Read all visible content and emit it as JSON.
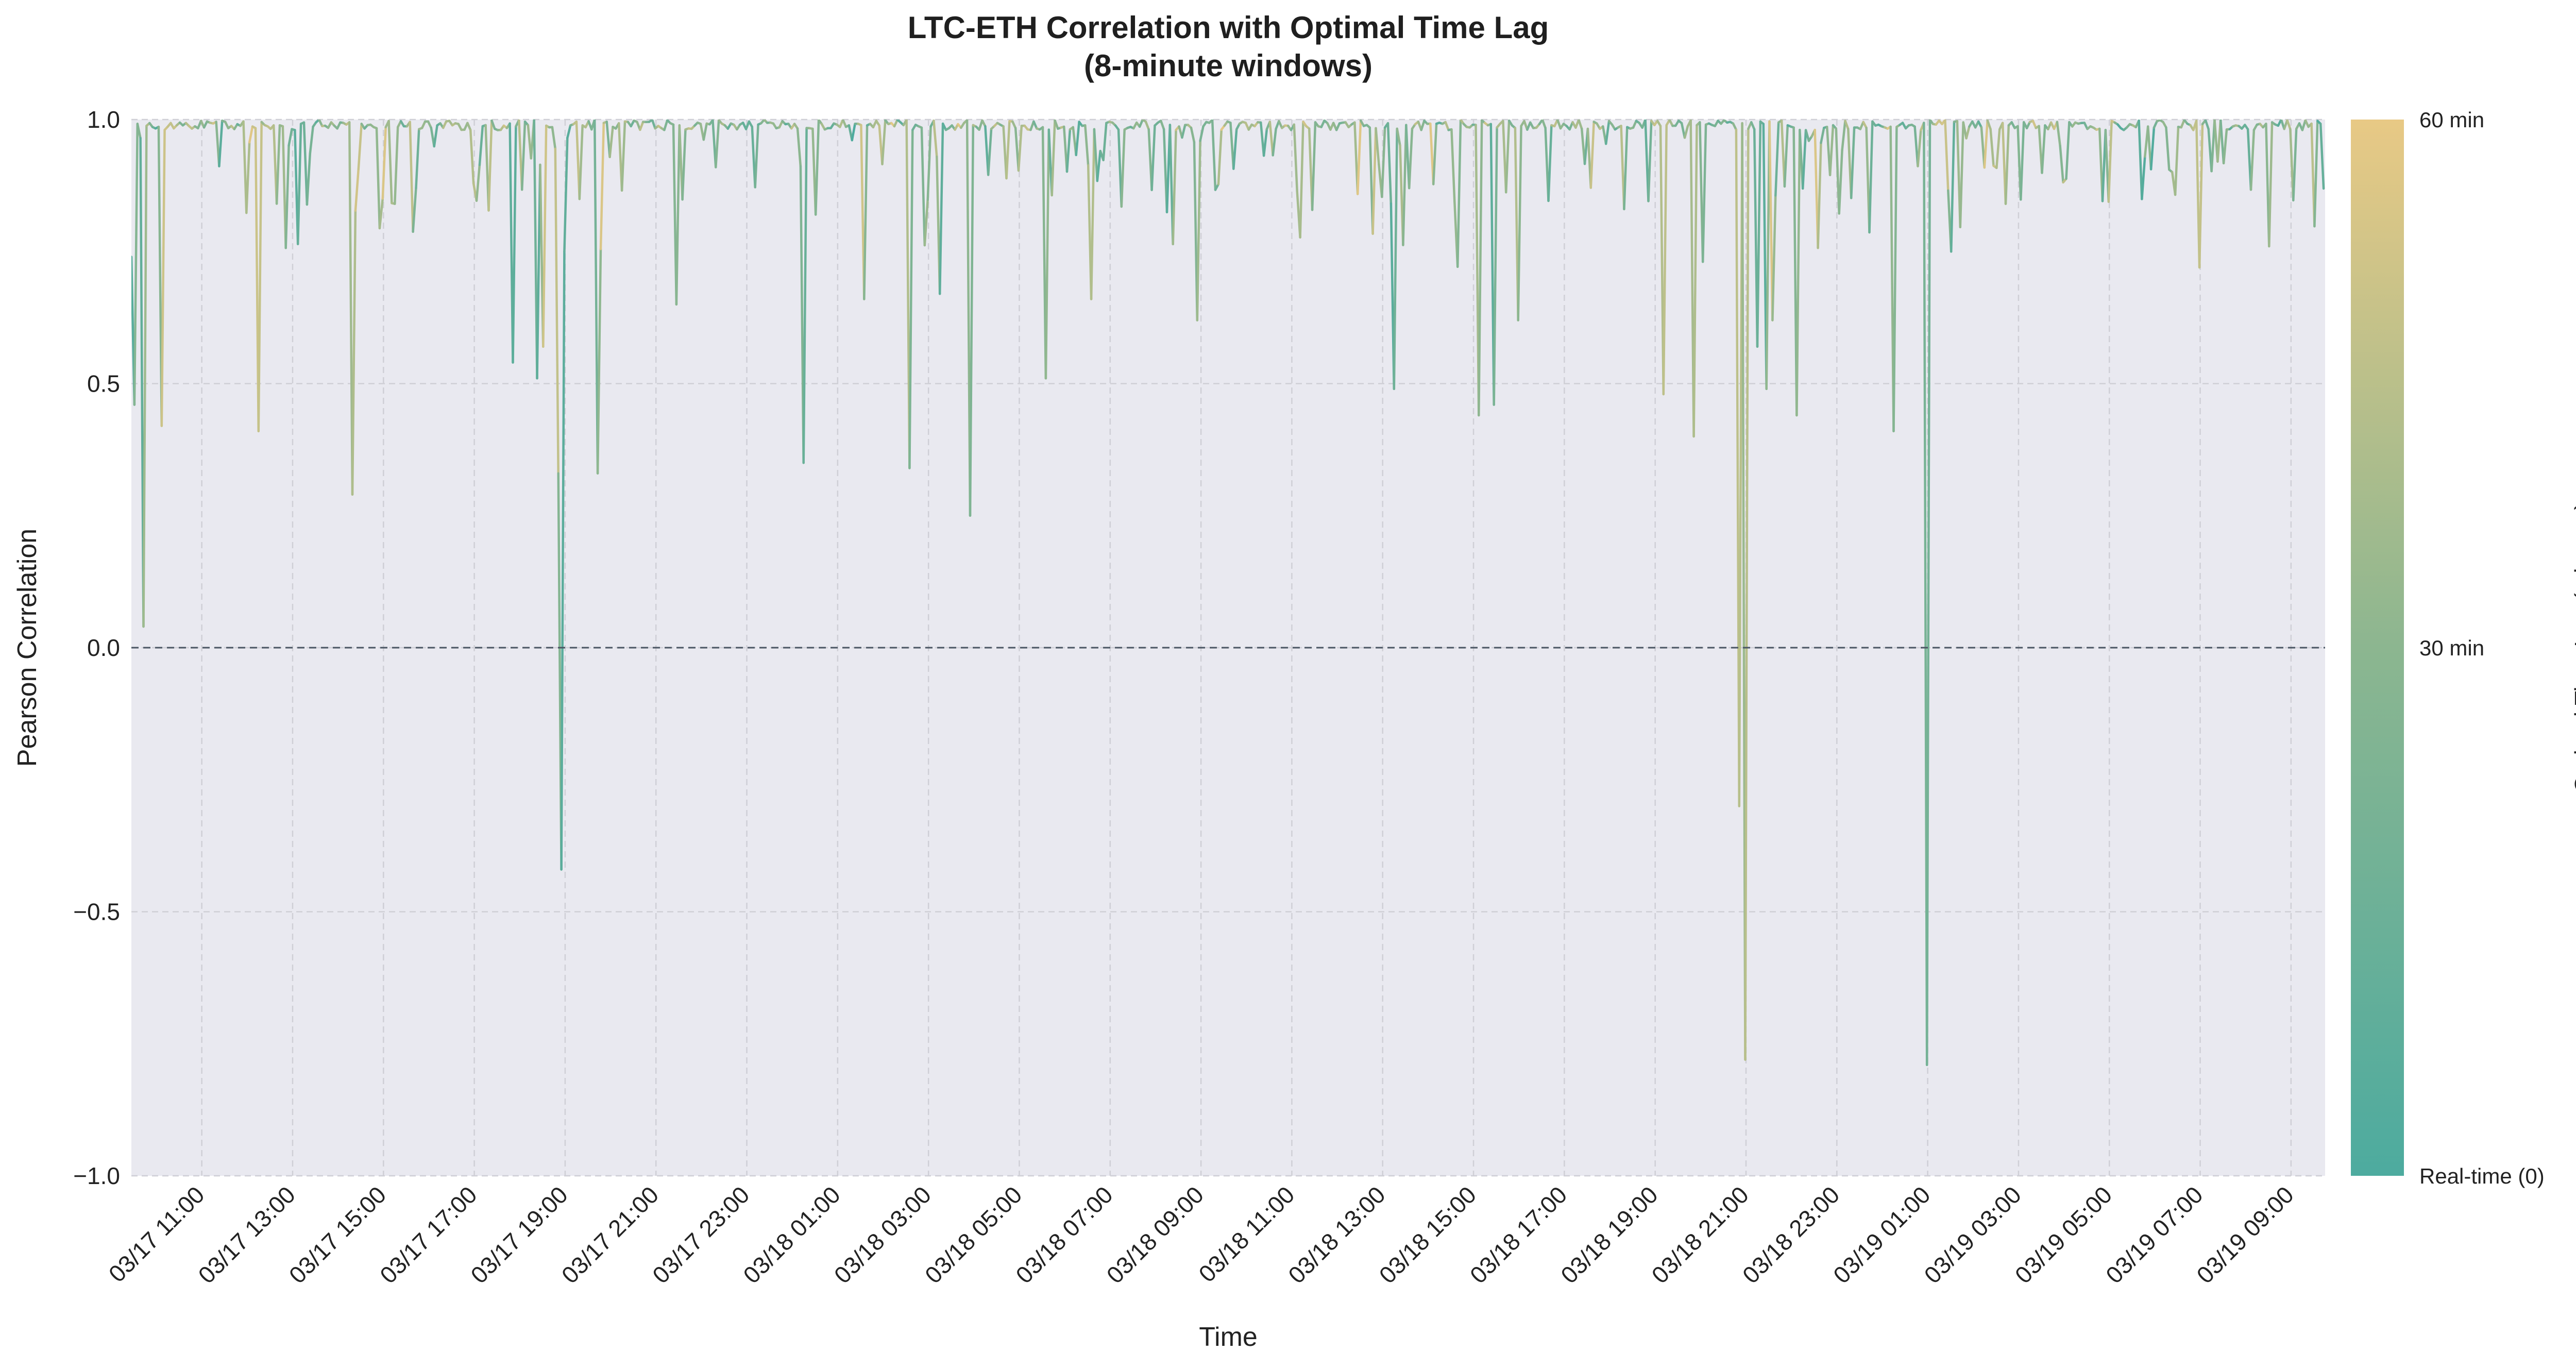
{
  "chart_data": {
    "type": "line",
    "title": "LTC-ETH Correlation with Optimal Time Lag",
    "subtitle": "(8-minute windows)",
    "xlabel": "Time",
    "ylabel": "Pearson Correlation",
    "ylim": [
      -1.0,
      1.0
    ],
    "y_ticks": [
      1.0,
      0.5,
      0.0,
      -0.5,
      -1.0
    ],
    "y_tick_labels": [
      "1.0",
      "0.5",
      "0.0",
      "−0.5",
      "−1.0"
    ],
    "x_range": [
      "2025-03-17T09:27",
      "2025-03-19T09:45"
    ],
    "x_ticks": [
      "2025-03-17T11:00",
      "2025-03-17T13:00",
      "2025-03-17T15:00",
      "2025-03-17T17:00",
      "2025-03-17T19:00",
      "2025-03-17T21:00",
      "2025-03-17T23:00",
      "2025-03-18T01:00",
      "2025-03-18T03:00",
      "2025-03-18T05:00",
      "2025-03-18T07:00",
      "2025-03-18T09:00",
      "2025-03-18T11:00",
      "2025-03-18T13:00",
      "2025-03-18T15:00",
      "2025-03-18T17:00",
      "2025-03-18T19:00",
      "2025-03-18T21:00",
      "2025-03-18T23:00",
      "2025-03-19T01:00",
      "2025-03-19T03:00",
      "2025-03-19T05:00",
      "2025-03-19T07:00",
      "2025-03-19T09:00"
    ],
    "x_tick_labels": [
      "03/17 11:00",
      "03/17 13:00",
      "03/17 15:00",
      "03/17 17:00",
      "03/17 19:00",
      "03/17 21:00",
      "03/17 23:00",
      "03/18 01:00",
      "03/18 03:00",
      "03/18 05:00",
      "03/18 07:00",
      "03/18 09:00",
      "03/18 11:00",
      "03/18 13:00",
      "03/18 15:00",
      "03/18 17:00",
      "03/18 19:00",
      "03/18 21:00",
      "03/18 23:00",
      "03/19 01:00",
      "03/19 03:00",
      "03/19 05:00",
      "03/19 07:00",
      "03/19 09:00"
    ],
    "reference_line": {
      "y": 0.0,
      "style": "dashed"
    },
    "colorbar": {
      "label": "Optimal Time Lag (minutes)",
      "range": [
        0,
        60
      ],
      "tick_values": [
        60,
        30,
        0
      ],
      "tick_labels": [
        "60 min",
        "30 min",
        "Real-time (0)"
      ],
      "colors": [
        "#4dab9f",
        "#8cb690",
        "#e8c985"
      ]
    },
    "baseline_correlation": 0.98,
    "dips": [
      {
        "t": "2025-03-17T09:27",
        "y": 0.74,
        "lag": 5
      },
      {
        "t": "2025-03-17T09:32",
        "y": 0.46,
        "lag": 5
      },
      {
        "t": "2025-03-17T09:45",
        "y": 0.04,
        "lag": 15
      },
      {
        "t": "2025-03-17T10:07",
        "y": 0.42,
        "lag": 55
      },
      {
        "t": "2025-03-17T10:07",
        "y": 0.64,
        "lag": 50
      },
      {
        "t": "2025-03-17T12:17",
        "y": 0.41,
        "lag": 58
      },
      {
        "t": "2025-03-17T14:20",
        "y": 0.29,
        "lag": 30
      },
      {
        "t": "2025-03-17T17:52",
        "y": 0.54,
        "lag": 5
      },
      {
        "t": "2025-03-17T18:22",
        "y": 0.51,
        "lag": 5
      },
      {
        "t": "2025-03-17T18:32",
        "y": 0.57,
        "lag": 55
      },
      {
        "t": "2025-03-17T18:52",
        "y": 0.33,
        "lag": 50
      },
      {
        "t": "2025-03-17T18:54",
        "y": -0.42,
        "lag": 3
      },
      {
        "t": "2025-03-17T19:00",
        "y": 0.75,
        "lag": 10
      },
      {
        "t": "2025-03-17T19:42",
        "y": 0.33,
        "lag": 10
      },
      {
        "t": "2025-03-17T21:27",
        "y": 0.65,
        "lag": 5
      },
      {
        "t": "2025-03-18T00:17",
        "y": 0.35,
        "lag": 5
      },
      {
        "t": "2025-03-18T01:37",
        "y": 0.66,
        "lag": 55
      },
      {
        "t": "2025-03-18T02:37",
        "y": 0.34,
        "lag": 30
      },
      {
        "t": "2025-03-18T03:17",
        "y": 0.67,
        "lag": 10
      },
      {
        "t": "2025-03-18T03:57",
        "y": 0.25,
        "lag": 3
      },
      {
        "t": "2025-03-18T05:37",
        "y": 0.51,
        "lag": 55
      },
      {
        "t": "2025-03-18T06:37",
        "y": 0.66,
        "lag": 55
      },
      {
        "t": "2025-03-18T08:57",
        "y": 0.62,
        "lag": 45
      },
      {
        "t": "2025-03-18T13:17",
        "y": 0.49,
        "lag": 5
      },
      {
        "t": "2025-03-18T15:07",
        "y": 0.44,
        "lag": 55
      },
      {
        "t": "2025-03-18T15:27",
        "y": 0.46,
        "lag": 5
      },
      {
        "t": "2025-03-18T16:00",
        "y": 0.62,
        "lag": 55
      },
      {
        "t": "2025-03-18T19:12",
        "y": 0.48,
        "lag": 50
      },
      {
        "t": "2025-03-18T19:52",
        "y": 0.4,
        "lag": 55
      },
      {
        "t": "2025-03-18T20:52",
        "y": -0.3,
        "lag": 58
      },
      {
        "t": "2025-03-18T21:00",
        "y": -0.78,
        "lag": 40
      },
      {
        "t": "2025-03-18T21:17",
        "y": 0.57,
        "lag": 5
      },
      {
        "t": "2025-03-18T21:27",
        "y": 0.49,
        "lag": 10
      },
      {
        "t": "2025-03-18T21:37",
        "y": 0.62,
        "lag": 58
      },
      {
        "t": "2025-03-18T22:07",
        "y": 0.44,
        "lag": 30
      },
      {
        "t": "2025-03-19T00:17",
        "y": 0.41,
        "lag": 5
      },
      {
        "t": "2025-03-19T00:50",
        "y": 0.98,
        "lag": 55
      },
      {
        "t": "2025-03-19T01:00",
        "y": -0.79,
        "lag": 5
      },
      {
        "t": "2025-03-19T01:30",
        "y": 0.75,
        "lag": 5
      },
      {
        "t": "2025-03-19T07:00",
        "y": 0.72,
        "lag": 55
      },
      {
        "t": "2025-03-19T08:30",
        "y": 0.76,
        "lag": 50
      }
    ]
  }
}
